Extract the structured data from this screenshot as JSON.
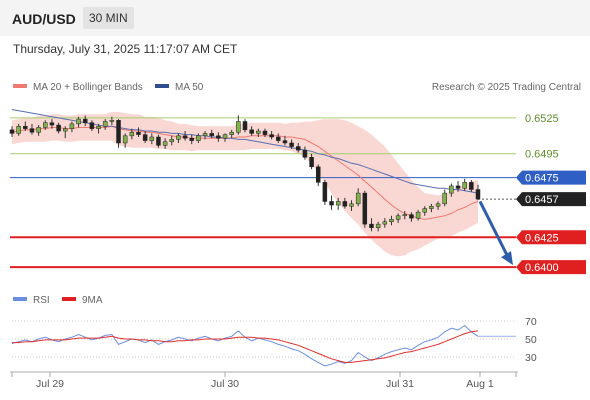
{
  "header": {
    "symbol": "AUD/USD",
    "timeframe": "30 MIN",
    "timestamp": "Thursday, July 31, 2025 11:17:07 AM CET"
  },
  "legend": {
    "ma_bb": "MA 20 + Bollinger Bands",
    "ma50": "MA 50",
    "credit": "Research © 2025 Trading Central"
  },
  "rsi_legend": {
    "rsi": "RSI",
    "ma9": "9MA"
  },
  "colors": {
    "resistance": "#2f5ec4",
    "support": "#e02020",
    "green": "#a6cf6e",
    "bb_fill": "#f7c9c4",
    "ma20": "#f07a70",
    "ma50": "#5a6fb3",
    "rsi": "#6a8fe0",
    "rsi_ma": "#e03030"
  },
  "chart_data": {
    "type": "candlestick",
    "title": "AUD/USD 30 MIN",
    "ylim": [
      0.6385,
      0.654
    ],
    "x_ticks": [
      "Jul 29",
      "Jul 30",
      "Jul 31",
      "Aug 1"
    ],
    "levels": [
      {
        "value": 0.6525,
        "label": "0.6525",
        "kind": "green"
      },
      {
        "value": 0.6495,
        "label": "0.6495",
        "kind": "green"
      },
      {
        "value": 0.6475,
        "label": "0.6475",
        "kind": "resistance"
      },
      {
        "value": 0.6457,
        "label": "0.6457",
        "kind": "last"
      },
      {
        "value": 0.6425,
        "label": "0.6425",
        "kind": "support"
      },
      {
        "value": 0.64,
        "label": "0.6400",
        "kind": "support"
      }
    ],
    "forecast_arrow": {
      "from": 0.6455,
      "to": 0.64
    },
    "ohlc": [
      [
        0.6515,
        0.6518,
        0.6509,
        0.6512
      ],
      [
        0.6512,
        0.652,
        0.651,
        0.6518
      ],
      [
        0.6518,
        0.6522,
        0.6514,
        0.6516
      ],
      [
        0.6516,
        0.652,
        0.6511,
        0.6513
      ],
      [
        0.6513,
        0.6519,
        0.651,
        0.6517
      ],
      [
        0.6517,
        0.6523,
        0.6515,
        0.6521
      ],
      [
        0.6521,
        0.6524,
        0.6516,
        0.6519
      ],
      [
        0.6519,
        0.6521,
        0.6512,
        0.6514
      ],
      [
        0.6514,
        0.6518,
        0.6508,
        0.6516
      ],
      [
        0.6516,
        0.6522,
        0.6513,
        0.652
      ],
      [
        0.652,
        0.6526,
        0.6517,
        0.6524
      ],
      [
        0.6524,
        0.6527,
        0.6518,
        0.6521
      ],
      [
        0.6521,
        0.6523,
        0.6514,
        0.6516
      ],
      [
        0.6516,
        0.652,
        0.6512,
        0.6518
      ],
      [
        0.6518,
        0.6524,
        0.6515,
        0.6522
      ],
      [
        0.6522,
        0.6526,
        0.6519,
        0.6523
      ],
      [
        0.6523,
        0.6524,
        0.65,
        0.6504
      ],
      [
        0.6504,
        0.6512,
        0.65,
        0.651
      ],
      [
        0.651,
        0.6516,
        0.6507,
        0.6513
      ],
      [
        0.6513,
        0.6517,
        0.6509,
        0.6511
      ],
      [
        0.6511,
        0.6514,
        0.6504,
        0.6506
      ],
      [
        0.6506,
        0.6512,
        0.6503,
        0.6509
      ],
      [
        0.6509,
        0.6511,
        0.65,
        0.6502
      ],
      [
        0.6502,
        0.6508,
        0.6499,
        0.6505
      ],
      [
        0.6505,
        0.651,
        0.6502,
        0.6507
      ],
      [
        0.6507,
        0.6512,
        0.6504,
        0.651
      ],
      [
        0.651,
        0.6514,
        0.6506,
        0.6508
      ],
      [
        0.6508,
        0.6511,
        0.6503,
        0.6506
      ],
      [
        0.6506,
        0.6512,
        0.6504,
        0.651
      ],
      [
        0.651,
        0.6514,
        0.6507,
        0.6512
      ],
      [
        0.6512,
        0.6515,
        0.6508,
        0.651
      ],
      [
        0.651,
        0.6513,
        0.6505,
        0.6508
      ],
      [
        0.6508,
        0.6512,
        0.6505,
        0.6511
      ],
      [
        0.6511,
        0.6515,
        0.6508,
        0.6513
      ],
      [
        0.6513,
        0.6527,
        0.6511,
        0.6522
      ],
      [
        0.6522,
        0.6524,
        0.6513,
        0.6515
      ],
      [
        0.6515,
        0.6518,
        0.651,
        0.6512
      ],
      [
        0.6512,
        0.6516,
        0.6509,
        0.6514
      ],
      [
        0.6514,
        0.6516,
        0.6509,
        0.6511
      ],
      [
        0.6511,
        0.6514,
        0.6507,
        0.6509
      ],
      [
        0.6509,
        0.6512,
        0.6504,
        0.6506
      ],
      [
        0.6506,
        0.651,
        0.6502,
        0.6504
      ],
      [
        0.6504,
        0.6507,
        0.6499,
        0.6501
      ],
      [
        0.6501,
        0.6504,
        0.6496,
        0.6498
      ],
      [
        0.6498,
        0.6501,
        0.649,
        0.6492
      ],
      [
        0.6492,
        0.6495,
        0.6482,
        0.6484
      ],
      [
        0.6484,
        0.6486,
        0.6468,
        0.6471
      ],
      [
        0.6471,
        0.6473,
        0.6452,
        0.6455
      ],
      [
        0.6455,
        0.646,
        0.6448,
        0.6452
      ],
      [
        0.6452,
        0.6458,
        0.6448,
        0.6455
      ],
      [
        0.6455,
        0.6458,
        0.6449,
        0.6451
      ],
      [
        0.6451,
        0.6456,
        0.6447,
        0.6453
      ],
      [
        0.6453,
        0.6466,
        0.6451,
        0.6462
      ],
      [
        0.6462,
        0.6464,
        0.6433,
        0.6436
      ],
      [
        0.6436,
        0.6441,
        0.643,
        0.6433
      ],
      [
        0.6433,
        0.6438,
        0.643,
        0.6436
      ],
      [
        0.6436,
        0.6441,
        0.6433,
        0.6438
      ],
      [
        0.6438,
        0.6443,
        0.6435,
        0.644
      ],
      [
        0.644,
        0.6445,
        0.6437,
        0.6443
      ],
      [
        0.6443,
        0.6447,
        0.644,
        0.6444
      ],
      [
        0.6444,
        0.6446,
        0.6438,
        0.6441
      ],
      [
        0.6441,
        0.6448,
        0.6439,
        0.6446
      ],
      [
        0.6446,
        0.6451,
        0.6443,
        0.6449
      ],
      [
        0.6449,
        0.6453,
        0.6446,
        0.6451
      ],
      [
        0.6451,
        0.6455,
        0.6448,
        0.6453
      ],
      [
        0.6453,
        0.6465,
        0.6451,
        0.6462
      ],
      [
        0.6462,
        0.647,
        0.6459,
        0.6468
      ],
      [
        0.6468,
        0.6472,
        0.6463,
        0.6466
      ],
      [
        0.6466,
        0.6474,
        0.6464,
        0.6471
      ],
      [
        0.6471,
        0.6473,
        0.6463,
        0.6465
      ],
      [
        0.6465,
        0.6469,
        0.6456,
        0.6457
      ]
    ],
    "ma20": [
      0.6513,
      0.6514,
      0.6515,
      0.6515,
      0.6516,
      0.6516,
      0.6517,
      0.6517,
      0.6516,
      0.6516,
      0.6517,
      0.6517,
      0.6517,
      0.6517,
      0.6517,
      0.6518,
      0.6516,
      0.6515,
      0.6514,
      0.6514,
      0.6513,
      0.6513,
      0.6512,
      0.6511,
      0.651,
      0.6509,
      0.6509,
      0.6508,
      0.6508,
      0.6508,
      0.6508,
      0.6508,
      0.6508,
      0.6508,
      0.6509,
      0.6509,
      0.651,
      0.651,
      0.651,
      0.651,
      0.651,
      0.6509,
      0.6509,
      0.6508,
      0.6507,
      0.6504,
      0.6501,
      0.6497,
      0.6493,
      0.6489,
      0.6485,
      0.6481,
      0.6477,
      0.6472,
      0.6467,
      0.6462,
      0.6457,
      0.6452,
      0.6448,
      0.6445,
      0.6443,
      0.6441,
      0.644,
      0.6441,
      0.6442,
      0.6443,
      0.6445,
      0.6448,
      0.645,
      0.6453,
      0.6455
    ],
    "bb_width": [
      0.001,
      0.001,
      0.001,
      0.001,
      0.0011,
      0.0011,
      0.0011,
      0.0011,
      0.0011,
      0.0011,
      0.0011,
      0.0011,
      0.0011,
      0.0011,
      0.0011,
      0.0012,
      0.0014,
      0.0014,
      0.0014,
      0.0014,
      0.0013,
      0.0013,
      0.0013,
      0.0012,
      0.0012,
      0.0011,
      0.0011,
      0.0011,
      0.001,
      0.001,
      0.001,
      0.001,
      0.001,
      0.001,
      0.0011,
      0.0011,
      0.0011,
      0.0011,
      0.0011,
      0.0011,
      0.0011,
      0.0011,
      0.0012,
      0.0013,
      0.0015,
      0.0018,
      0.0022,
      0.0027,
      0.0031,
      0.0035,
      0.0038,
      0.004,
      0.0041,
      0.0043,
      0.0044,
      0.0044,
      0.0044,
      0.0042,
      0.0039,
      0.0035,
      0.003,
      0.0026,
      0.0022,
      0.002,
      0.0018,
      0.0018,
      0.0019,
      0.0019,
      0.0019,
      0.0019,
      0.0018
    ],
    "ma50": [
      0.6532,
      0.6531,
      0.653,
      0.6529,
      0.6528,
      0.6527,
      0.6526,
      0.6525,
      0.6524,
      0.6523,
      0.6522,
      0.6521,
      0.652,
      0.6519,
      0.6518,
      0.6518,
      0.6517,
      0.6516,
      0.6515,
      0.6515,
      0.6514,
      0.6514,
      0.6513,
      0.6513,
      0.6512,
      0.6512,
      0.6511,
      0.6511,
      0.651,
      0.651,
      0.6509,
      0.6509,
      0.6508,
      0.6508,
      0.6507,
      0.6507,
      0.6506,
      0.6505,
      0.6504,
      0.6503,
      0.6502,
      0.6501,
      0.65,
      0.6499,
      0.6498,
      0.6497,
      0.6495,
      0.6494,
      0.6492,
      0.6491,
      0.6489,
      0.6487,
      0.6486,
      0.6484,
      0.6482,
      0.648,
      0.6478,
      0.6476,
      0.6474,
      0.6472,
      0.647,
      0.6469,
      0.6468,
      0.6467,
      0.6466,
      0.6466,
      0.6465,
      0.6465,
      0.6464,
      0.6463,
      0.6462
    ],
    "rsi_ticks": [
      70,
      50,
      30
    ],
    "rsi": [
      45,
      47,
      49,
      47,
      50,
      52,
      49,
      47,
      50,
      52,
      55,
      52,
      49,
      51,
      54,
      55,
      44,
      47,
      50,
      49,
      46,
      49,
      44,
      47,
      49,
      52,
      50,
      48,
      51,
      53,
      50,
      48,
      51,
      53,
      59,
      52,
      48,
      51,
      49,
      47,
      44,
      42,
      39,
      37,
      33,
      28,
      24,
      20,
      22,
      25,
      23,
      26,
      35,
      30,
      26,
      29,
      33,
      36,
      38,
      40,
      38,
      43,
      47,
      49,
      52,
      58,
      62,
      60,
      65,
      58,
      53
    ],
    "rsi_ma": [
      46,
      46,
      47,
      47,
      48,
      49,
      49,
      49,
      49,
      50,
      51,
      51,
      51,
      51,
      52,
      53,
      51,
      50,
      50,
      49,
      49,
      48,
      48,
      47,
      47,
      48,
      48,
      49,
      49,
      50,
      50,
      50,
      50,
      51,
      52,
      52,
      52,
      51,
      51,
      50,
      49,
      47,
      45,
      43,
      40,
      37,
      34,
      31,
      28,
      26,
      24,
      24,
      25,
      26,
      27,
      28,
      29,
      31,
      33,
      35,
      36,
      38,
      40,
      42,
      44,
      47,
      50,
      53,
      56,
      58,
      59
    ]
  }
}
